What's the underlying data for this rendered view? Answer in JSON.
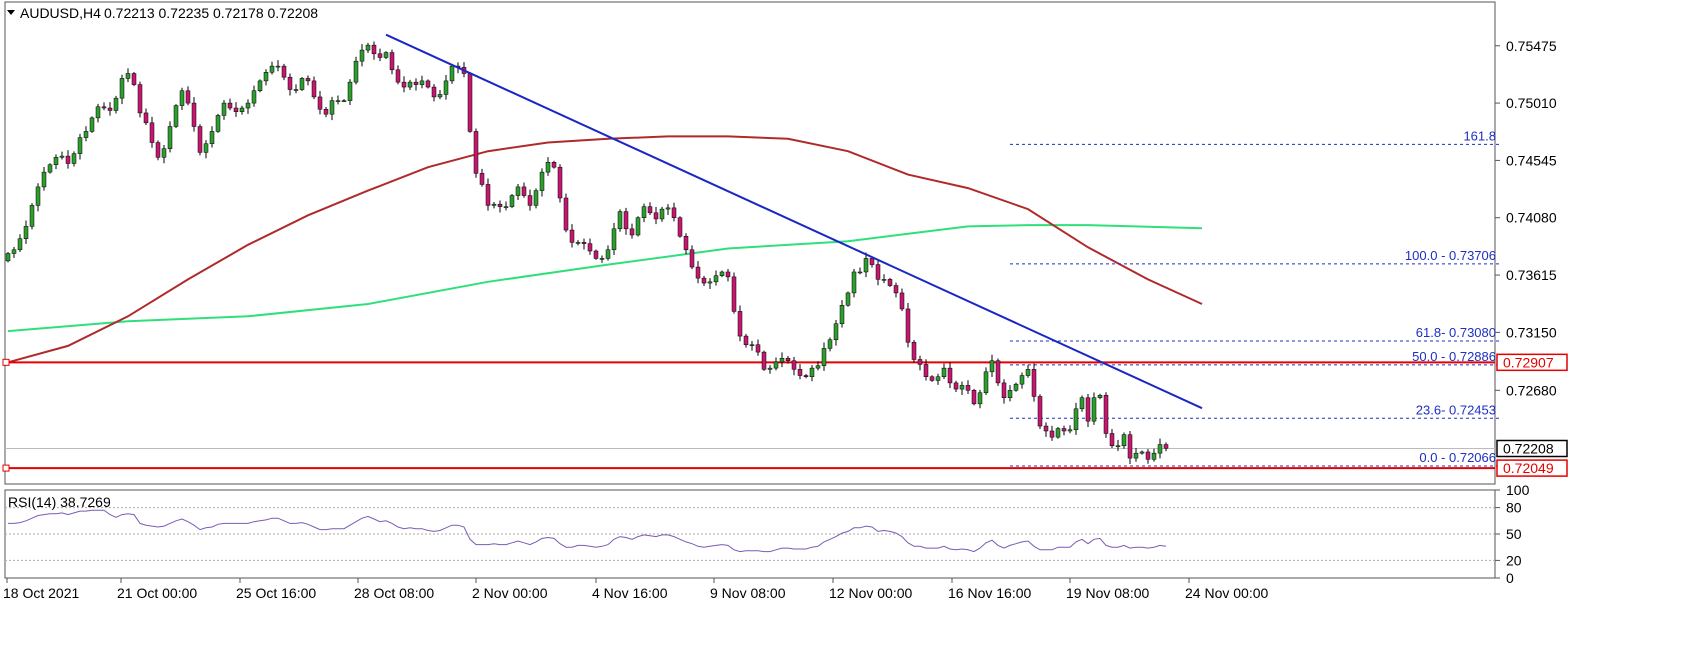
{
  "header": {
    "symbol": "AUDUSD,H4",
    "ohlc": "0.72213 0.72235 0.72178 0.72208"
  },
  "rsi_header": "RSI(14) 38.7269",
  "colors": {
    "bull": "#2e9c2e",
    "bear": "#c2186f",
    "trendline": "#1a27c4",
    "sma100": "#b02a2a",
    "sma200": "#2fe07a",
    "horizontal": "#e60000",
    "fib": "#1d2fc4",
    "rsi": "#7a5bb4"
  },
  "chart_data": [
    {
      "type": "candlestick",
      "title": "AUDUSD,H4",
      "x_tick_labels": [
        "18 Oct 2021",
        "21 Oct 00:00",
        "25 Oct 16:00",
        "28 Oct 08:00",
        "2 Nov 00:00",
        "4 Nov 16:00",
        "9 Nov 08:00",
        "12 Nov 00:00",
        "16 Nov 16:00",
        "19 Nov 08:00",
        "24 Nov 00:00"
      ],
      "y_tick_labels": [
        "0.75475",
        "0.75010",
        "0.74545",
        "0.74080",
        "0.73615",
        "0.73150",
        "0.72680"
      ],
      "ylim": [
        0.7192,
        0.7583
      ],
      "price_tags": [
        {
          "text": "0.72907",
          "value": 0.72907,
          "color": "#e60000"
        },
        {
          "text": "0.72208",
          "value": 0.72208,
          "color": "#000000"
        },
        {
          "text": "0.72049",
          "value": 0.72049,
          "color": "#e60000"
        }
      ],
      "horizontal_lines": [
        0.72907,
        0.72049
      ],
      "fibonacci_levels": [
        {
          "label": "161.8",
          "value": 0.74675
        },
        {
          "label": "100.0 - 0.73706",
          "value": 0.73706
        },
        {
          "label": "61.8- 0.73080",
          "value": 0.7308
        },
        {
          "label": "50.0 - 0.72886",
          "value": 0.72886
        },
        {
          "label": "23.6- 0.72453",
          "value": 0.72453
        },
        {
          "label": "0.0 - 0.72066",
          "value": 0.72066
        }
      ],
      "trendline": [
        {
          "bar": 63,
          "price": 0.75565
        },
        {
          "bar": 199,
          "price": 0.72535
        }
      ],
      "sma_100": [
        {
          "bar": 0,
          "value": 0.72907
        },
        {
          "bar": 10,
          "value": 0.7304
        },
        {
          "bar": 20,
          "value": 0.7328
        },
        {
          "bar": 30,
          "value": 0.7358
        },
        {
          "bar": 40,
          "value": 0.7386
        },
        {
          "bar": 50,
          "value": 0.741
        },
        {
          "bar": 60,
          "value": 0.743
        },
        {
          "bar": 70,
          "value": 0.7449
        },
        {
          "bar": 80,
          "value": 0.7462
        },
        {
          "bar": 90,
          "value": 0.7469
        },
        {
          "bar": 100,
          "value": 0.7472
        },
        {
          "bar": 110,
          "value": 0.7474
        },
        {
          "bar": 120,
          "value": 0.7474
        },
        {
          "bar": 130,
          "value": 0.7472
        },
        {
          "bar": 140,
          "value": 0.7462
        },
        {
          "bar": 150,
          "value": 0.7443
        },
        {
          "bar": 160,
          "value": 0.7432
        },
        {
          "bar": 170,
          "value": 0.7415
        },
        {
          "bar": 180,
          "value": 0.7384
        },
        {
          "bar": 190,
          "value": 0.7358
        },
        {
          "bar": 199,
          "value": 0.7338
        }
      ],
      "sma_200": [
        {
          "bar": 0,
          "value": 0.7316
        },
        {
          "bar": 20,
          "value": 0.7324
        },
        {
          "bar": 40,
          "value": 0.7328
        },
        {
          "bar": 60,
          "value": 0.7338
        },
        {
          "bar": 80,
          "value": 0.7356
        },
        {
          "bar": 100,
          "value": 0.737
        },
        {
          "bar": 120,
          "value": 0.7383
        },
        {
          "bar": 140,
          "value": 0.7389
        },
        {
          "bar": 150,
          "value": 0.7395
        },
        {
          "bar": 160,
          "value": 0.7401
        },
        {
          "bar": 170,
          "value": 0.7402
        },
        {
          "bar": 180,
          "value": 0.7402
        },
        {
          "bar": 199,
          "value": 0.73995
        }
      ],
      "close": [
        0.7379,
        0.7382,
        0.7391,
        0.7401,
        0.7418,
        0.7433,
        0.7445,
        0.7451,
        0.7457,
        0.7458,
        0.7452,
        0.746,
        0.7473,
        0.7478,
        0.7489,
        0.7498,
        0.7497,
        0.7495,
        0.7505,
        0.7521,
        0.7525,
        0.7516,
        0.7493,
        0.7485,
        0.7469,
        0.7457,
        0.7464,
        0.7482,
        0.7499,
        0.7511,
        0.7501,
        0.7482,
        0.7461,
        0.7468,
        0.7478,
        0.7491,
        0.7501,
        0.7497,
        0.7494,
        0.7497,
        0.7501,
        0.7511,
        0.7519,
        0.7526,
        0.7531,
        0.7531,
        0.7522,
        0.7512,
        0.7512,
        0.7521,
        0.7519,
        0.7506,
        0.7496,
        0.7492,
        0.7503,
        0.7503,
        0.7503,
        0.7518,
        0.7535,
        0.7544,
        0.7548,
        0.7541,
        0.7538,
        0.7542,
        0.7528,
        0.7518,
        0.7514,
        0.7518,
        0.7516,
        0.7519,
        0.7514,
        0.7506,
        0.7508,
        0.7519,
        0.7531,
        0.753,
        0.7525,
        0.7478,
        0.7444,
        0.7435,
        0.7418,
        0.7419,
        0.7417,
        0.7417,
        0.7426,
        0.7433,
        0.7426,
        0.7418,
        0.743,
        0.7445,
        0.7453,
        0.7449,
        0.7424,
        0.7398,
        0.7388,
        0.7388,
        0.7387,
        0.7381,
        0.7375,
        0.7375,
        0.7382,
        0.7399,
        0.7413,
        0.7399,
        0.7394,
        0.7408,
        0.7417,
        0.7412,
        0.7407,
        0.7415,
        0.7416,
        0.7408,
        0.7393,
        0.7382,
        0.7368,
        0.7359,
        0.7355,
        0.7356,
        0.7361,
        0.7364,
        0.736,
        0.7332,
        0.7312,
        0.7305,
        0.7305,
        0.7299,
        0.7285,
        0.7286,
        0.7291,
        0.7294,
        0.7292,
        0.7285,
        0.728,
        0.7279,
        0.7286,
        0.7288,
        0.7302,
        0.7309,
        0.7322,
        0.7337,
        0.7347,
        0.7364,
        0.7364,
        0.7375,
        0.737,
        0.7358,
        0.7358,
        0.7353,
        0.7347,
        0.7334,
        0.7307,
        0.7293,
        0.7289,
        0.7279,
        0.7276,
        0.7279,
        0.7286,
        0.7274,
        0.7269,
        0.7272,
        0.7268,
        0.7257,
        0.7266,
        0.7283,
        0.7292,
        0.7274,
        0.7262,
        0.7268,
        0.7273,
        0.728,
        0.7285,
        0.7263,
        0.7239,
        0.7235,
        0.723,
        0.7237,
        0.7235,
        0.7236,
        0.7253,
        0.7262,
        0.7243,
        0.7262,
        0.7264,
        0.7233,
        0.7223,
        0.7223,
        0.7232,
        0.7213,
        0.7217,
        0.7218,
        0.7212,
        0.7217,
        0.7224,
        0.7221
      ]
    },
    {
      "type": "line",
      "title": "RSI(14) 38.7269",
      "y_tick_labels": [
        "100",
        "80",
        "50",
        "20",
        "0"
      ],
      "ylim": [
        0,
        100
      ],
      "levels": [
        80,
        50,
        20
      ],
      "values": [
        62,
        62,
        63,
        65,
        68,
        71,
        72,
        73,
        73,
        74,
        72,
        74,
        76,
        76,
        77,
        77,
        77,
        72,
        69,
        72,
        73,
        72,
        62,
        60,
        59,
        58,
        59,
        62,
        65,
        67,
        64,
        60,
        55,
        57,
        58,
        61,
        62,
        62,
        62,
        62,
        62,
        64,
        65,
        66,
        68,
        68,
        65,
        62,
        62,
        63,
        61,
        58,
        55,
        55,
        56,
        56,
        56,
        60,
        64,
        68,
        70,
        67,
        64,
        65,
        62,
        58,
        56,
        57,
        56,
        56,
        54,
        53,
        54,
        57,
        60,
        60,
        58,
        44,
        38,
        38,
        38,
        39,
        38,
        38,
        40,
        42,
        40,
        38,
        41,
        45,
        46,
        45,
        39,
        35,
        35,
        37,
        37,
        36,
        35,
        36,
        38,
        44,
        47,
        46,
        44,
        47,
        49,
        48,
        47,
        49,
        49,
        47,
        44,
        41,
        39,
        36,
        35,
        36,
        37,
        38,
        37,
        32,
        30,
        31,
        31,
        31,
        30,
        30,
        32,
        34,
        34,
        33,
        33,
        33,
        35,
        36,
        41,
        44,
        47,
        51,
        53,
        57,
        57,
        59,
        58,
        53,
        54,
        53,
        51,
        47,
        40,
        36,
        36,
        34,
        34,
        34,
        36,
        33,
        32,
        33,
        32,
        30,
        34,
        40,
        43,
        37,
        34,
        37,
        39,
        41,
        42,
        36,
        32,
        32,
        32,
        35,
        35,
        35,
        41,
        44,
        39,
        44,
        45,
        37,
        35,
        35,
        37,
        34,
        35,
        35,
        34,
        35,
        37,
        36
      ]
    }
  ]
}
